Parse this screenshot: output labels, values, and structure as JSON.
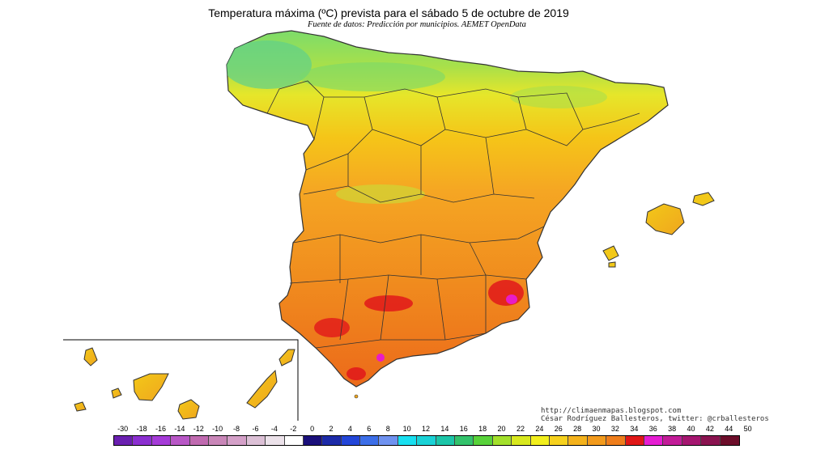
{
  "map": {
    "title": "Temperatura máxima (ºC) prevista para el sábado 5 de octubre de 2019",
    "subtitle": "Fuente de datos: Predicción por municipios. AEMET OpenData",
    "region": "Spain",
    "variable": "temperature-max",
    "unit": "ºC"
  },
  "credits": {
    "url": "http://climaenmapas.blogspot.com",
    "author": "César Rodríguez Ballesteros, twitter: @crballesteros"
  },
  "colors": {
    "ocean": "#ffffff",
    "north_coast_cool": "#7ddc6a",
    "north_green": "#a8e04a",
    "north_yellow": "#e6e62a",
    "central_yellow_orange": "#f5c518",
    "central_orange": "#f5a623",
    "south_orange": "#f08c1e",
    "south_hot": "#ec6a1a",
    "hot_spot": "#e0101a",
    "very_hot_spot": "#e81cc8",
    "border": "#333333"
  },
  "legend": {
    "ticks": [
      "-30",
      "-18",
      "-16",
      "-14",
      "-12",
      "-10",
      "-8",
      "-6",
      "-4",
      "-2",
      "0",
      "2",
      "4",
      "6",
      "8",
      "10",
      "12",
      "14",
      "16",
      "18",
      "20",
      "22",
      "24",
      "26",
      "28",
      "30",
      "32",
      "34",
      "36",
      "38",
      "40",
      "42",
      "44",
      "50"
    ],
    "colors": [
      "#6a1fb0",
      "#8b2fd0",
      "#a53bd8",
      "#b857c6",
      "#c06ab0",
      "#c986b8",
      "#d4a0c8",
      "#dcc0d6",
      "#ece2ea",
      "#ffffff",
      "#1a0f7a",
      "#1c2aa8",
      "#2346d8",
      "#3c6ee8",
      "#6f92f0",
      "#18dff0",
      "#1ad2d6",
      "#1cc5a8",
      "#33c26b",
      "#58d23a",
      "#a3e02b",
      "#d8e81e",
      "#f2ef1d",
      "#f6d11d",
      "#f4b21c",
      "#f29a1c",
      "#ee7d1b",
      "#e01717",
      "#e61dd2",
      "#c21c98",
      "#a51670",
      "#8a1350",
      "#6c0d2a"
    ]
  }
}
